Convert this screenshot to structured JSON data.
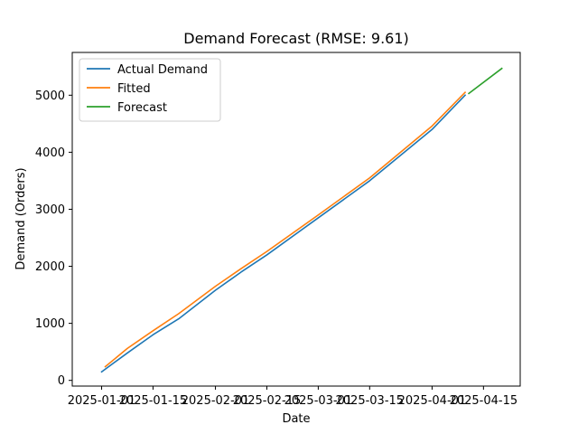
{
  "chart_data": {
    "type": "line",
    "title": "Demand Forecast (RMSE: 9.61)",
    "xlabel": "Date",
    "ylabel": "Demand (Orders)",
    "x_ticks": [
      "2025-01-01",
      "2025-01-15",
      "2025-02-01",
      "2025-02-15",
      "2025-03-01",
      "2025-03-15",
      "2025-04-01",
      "2025-04-15"
    ],
    "y_ticks": [
      0,
      1000,
      2000,
      3000,
      4000,
      5000
    ],
    "xlim": [
      "2024-12-24",
      "2025-04-25"
    ],
    "ylim": [
      -100,
      5750
    ],
    "grid": false,
    "legend_position": "top-left",
    "colors": {
      "actual": "#1f77b4",
      "fitted": "#ff7f0e",
      "forecast": "#2ca02c"
    },
    "series": [
      {
        "name": "Actual Demand",
        "color": "#1f77b4",
        "points": [
          [
            "2025-01-01",
            150
          ],
          [
            "2025-01-08",
            480
          ],
          [
            "2025-01-15",
            800
          ],
          [
            "2025-01-22",
            1080
          ],
          [
            "2025-02-01",
            1580
          ],
          [
            "2025-02-08",
            1900
          ],
          [
            "2025-02-15",
            2200
          ],
          [
            "2025-03-01",
            2850
          ],
          [
            "2025-03-15",
            3500
          ],
          [
            "2025-04-01",
            4400
          ],
          [
            "2025-04-10",
            5000
          ]
        ]
      },
      {
        "name": "Fitted",
        "color": "#ff7f0e",
        "points": [
          [
            "2025-01-02",
            240
          ],
          [
            "2025-01-08",
            560
          ],
          [
            "2025-01-15",
            870
          ],
          [
            "2025-01-22",
            1170
          ],
          [
            "2025-02-01",
            1650
          ],
          [
            "2025-02-08",
            1960
          ],
          [
            "2025-02-15",
            2260
          ],
          [
            "2025-03-01",
            2900
          ],
          [
            "2025-03-15",
            3550
          ],
          [
            "2025-04-01",
            4460
          ],
          [
            "2025-04-10",
            5050
          ]
        ]
      },
      {
        "name": "Forecast",
        "color": "#2ca02c",
        "points": [
          [
            "2025-04-11",
            5030
          ],
          [
            "2025-04-20",
            5470
          ]
        ]
      }
    ]
  }
}
